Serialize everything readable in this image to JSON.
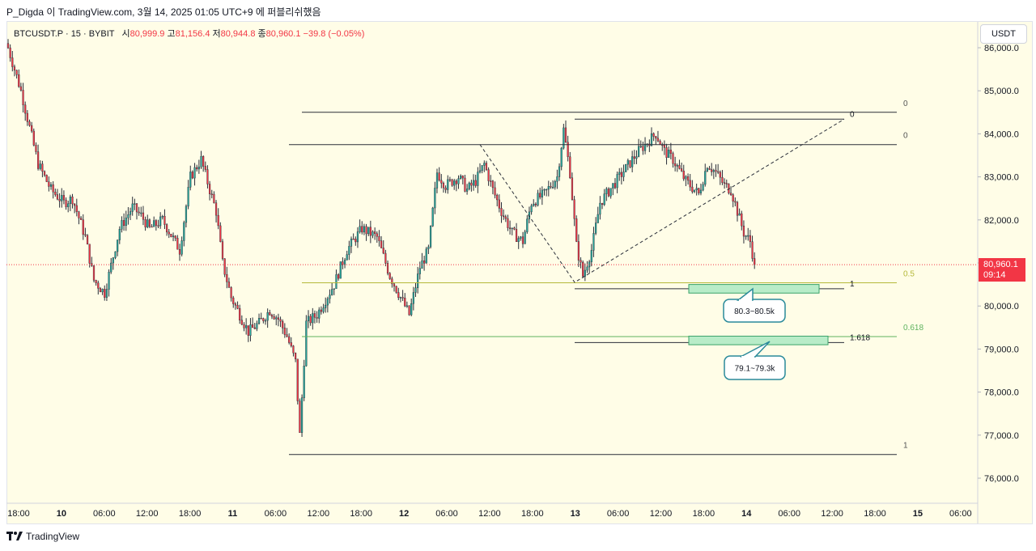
{
  "header": {
    "credit": "P_Digda 이 TradingView.com, 3월 14, 2025 01:05 UTC+9 에 퍼블리쉬했음"
  },
  "legend": {
    "symbol": "BTCUSDT.P · 15 · BYBIT",
    "open_label": "시",
    "open": "80,999.9",
    "high_label": "고",
    "high": "81,156.4",
    "low_label": "저",
    "low": "80,944.8",
    "close_label": "종",
    "close": "80,960.1",
    "change": "−39.8 (−0.05%)"
  },
  "currency_button": "USDT",
  "price_tag": {
    "price": "80,960.1",
    "countdown": "09:14"
  },
  "branding": "TradingView",
  "colors": {
    "up": "#26a69a",
    "down": "#f23645",
    "background": "#fffde7",
    "fib_050": "#b5b83a",
    "fib_0618": "#5fb35f",
    "zone_fill": "#b8ecc8",
    "callout_border": "#2a8a9a"
  },
  "chart_data": {
    "type": "candlestick",
    "symbol": "BTCUSDT.P",
    "interval": "15",
    "exchange": "BYBIT",
    "ylim": [
      75500,
      86200
    ],
    "y_ticks": [
      "76,000.0",
      "77,000.0",
      "78,000.0",
      "79,000.0",
      "80,000.0",
      "81,000.0",
      "82,000.0",
      "83,000.0",
      "84,000.0",
      "85,000.0",
      "86,000.0"
    ],
    "x_ticks": [
      "18:00",
      "10",
      "06:00",
      "12:00",
      "18:00",
      "11",
      "06:00",
      "12:00",
      "18:00",
      "12",
      "06:00",
      "12:00",
      "18:00",
      "13",
      "06:00",
      "12:00",
      "18:00",
      "14",
      "06:00",
      "12:00",
      "18:00",
      "15",
      "06:00"
    ],
    "last_price": 80960.1,
    "anchors": [
      [
        0,
        86000
      ],
      [
        6,
        85000
      ],
      [
        14,
        83300
      ],
      [
        20,
        82700
      ],
      [
        26,
        82400
      ],
      [
        30,
        82500
      ],
      [
        36,
        81600
      ],
      [
        40,
        80600
      ],
      [
        45,
        80300
      ],
      [
        52,
        81800
      ],
      [
        58,
        82300
      ],
      [
        62,
        82100
      ],
      [
        66,
        81800
      ],
      [
        72,
        82000
      ],
      [
        80,
        81300
      ],
      [
        85,
        83000
      ],
      [
        90,
        83400
      ],
      [
        94,
        82700
      ],
      [
        97,
        82200
      ],
      [
        100,
        81000
      ],
      [
        104,
        80200
      ],
      [
        108,
        79800
      ],
      [
        112,
        79400
      ],
      [
        117,
        79600
      ],
      [
        122,
        79900
      ],
      [
        126,
        79700
      ],
      [
        130,
        79300
      ],
      [
        134,
        78700
      ],
      [
        136,
        77000
      ],
      [
        139,
        79600
      ],
      [
        144,
        79800
      ],
      [
        152,
        80500
      ],
      [
        158,
        81300
      ],
      [
        165,
        81800
      ],
      [
        172,
        81600
      ],
      [
        178,
        80700
      ],
      [
        182,
        80300
      ],
      [
        187,
        79800
      ],
      [
        192,
        80900
      ],
      [
        196,
        81300
      ],
      [
        200,
        83100
      ],
      [
        204,
        82800
      ],
      [
        210,
        83000
      ],
      [
        214,
        82700
      ],
      [
        218,
        82900
      ],
      [
        222,
        83300
      ],
      [
        226,
        82700
      ],
      [
        230,
        82200
      ],
      [
        235,
        81700
      ],
      [
        240,
        81500
      ],
      [
        244,
        82400
      ],
      [
        250,
        82600
      ],
      [
        256,
        83000
      ],
      [
        259,
        84100
      ],
      [
        262,
        83100
      ],
      [
        265,
        81400
      ],
      [
        268,
        80700
      ],
      [
        272,
        81300
      ],
      [
        276,
        82400
      ],
      [
        282,
        82800
      ],
      [
        288,
        83200
      ],
      [
        294,
        83600
      ],
      [
        298,
        83800
      ],
      [
        302,
        84000
      ],
      [
        306,
        83600
      ],
      [
        310,
        83400
      ],
      [
        316,
        82900
      ],
      [
        322,
        82600
      ],
      [
        326,
        83300
      ],
      [
        330,
        83100
      ],
      [
        334,
        82800
      ],
      [
        337,
        82700
      ],
      [
        340,
        82200
      ],
      [
        343,
        81700
      ],
      [
        346,
        81500
      ],
      [
        348,
        80960
      ]
    ],
    "fib_levels_primary": [
      {
        "label": "0",
        "price": 84500
      },
      {
        "label": "1",
        "price": 76550
      }
    ],
    "fib_levels_secondary": [
      {
        "label": "0",
        "price": 83750
      },
      {
        "label": "0.5",
        "price": 80540
      },
      {
        "label": "0.618",
        "price": 79290
      }
    ],
    "projection": {
      "level_labels": [
        {
          "label": "0",
          "price": 84340
        },
        {
          "label": "1",
          "price": 80400
        },
        {
          "label": "1.618",
          "price": 79150
        }
      ],
      "path": [
        [
          83750,
          "12 12:00"
        ],
        [
          80550,
          "13 00:00"
        ],
        [
          84340,
          "14 09:00"
        ]
      ]
    },
    "zones": [
      {
        "label": "80.3~80.5k",
        "low": 80300,
        "high": 80500
      },
      {
        "label": "79.1~79.3k",
        "low": 79100,
        "high": 79300
      }
    ]
  }
}
